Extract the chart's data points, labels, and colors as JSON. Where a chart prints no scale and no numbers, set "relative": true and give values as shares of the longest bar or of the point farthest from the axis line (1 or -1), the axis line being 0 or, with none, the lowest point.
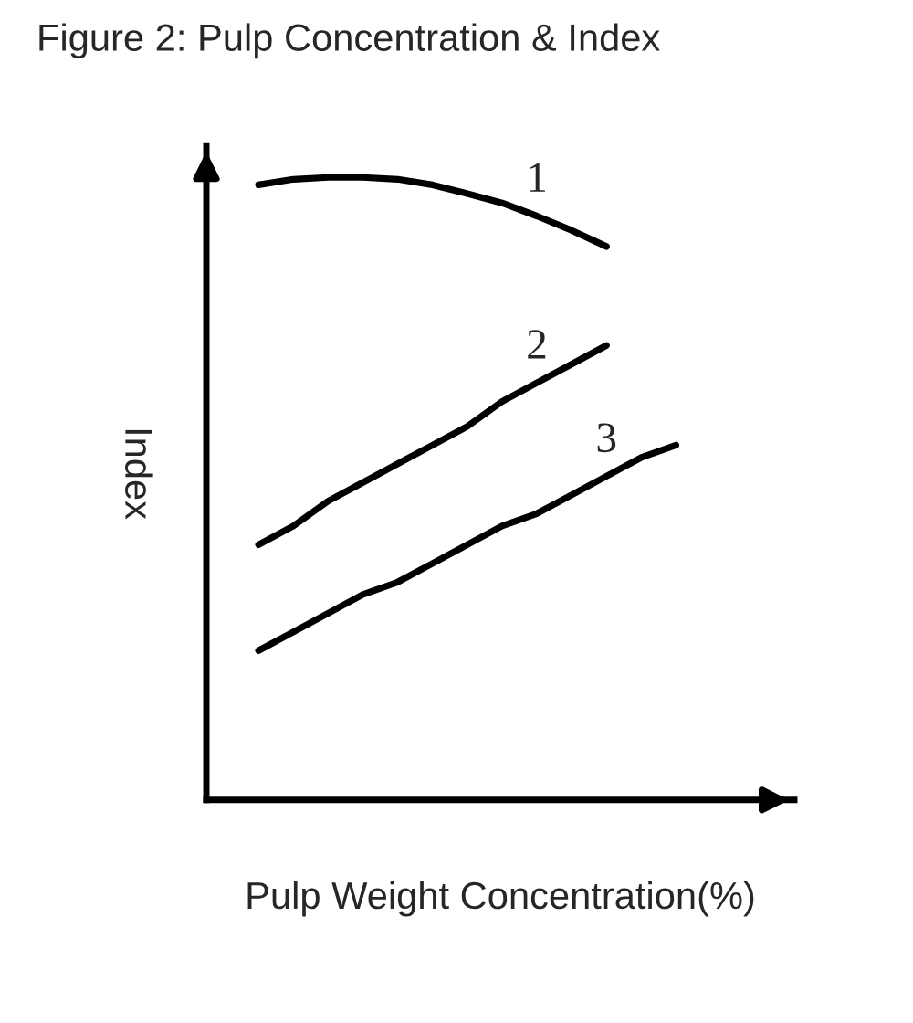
{
  "chart_data": {
    "type": "line",
    "title": "Figure 2: Pulp Concentration & Index",
    "xlabel": "Pulp Weight Concentration(%)",
    "ylabel": "Index",
    "relative": true,
    "categories": [
      null,
      null,
      null,
      null,
      null,
      null,
      null,
      null,
      null,
      null,
      null,
      null,
      null
    ],
    "series": [
      {
        "name": "1",
        "color": "#000000",
        "values": [
          0.988,
          0.997,
          1,
          1,
          0.997,
          0.988,
          0.974,
          0.959,
          0.938,
          0.915,
          0.889,
          null,
          null
        ]
      },
      {
        "name": "2",
        "color": "#000000",
        "values": [
          0.41,
          0.44,
          0.48,
          0.51,
          0.54,
          0.57,
          0.6,
          0.64,
          0.67,
          0.7,
          0.73,
          null,
          null
        ]
      },
      {
        "name": "3",
        "color": "#000000",
        "values": [
          0.24,
          0.27,
          0.3,
          0.33,
          0.35,
          0.38,
          0.41,
          0.44,
          0.46,
          0.49,
          0.52,
          0.55,
          0.57
        ]
      }
    ],
    "legend": false,
    "marker": "none",
    "line_style": "solid"
  }
}
